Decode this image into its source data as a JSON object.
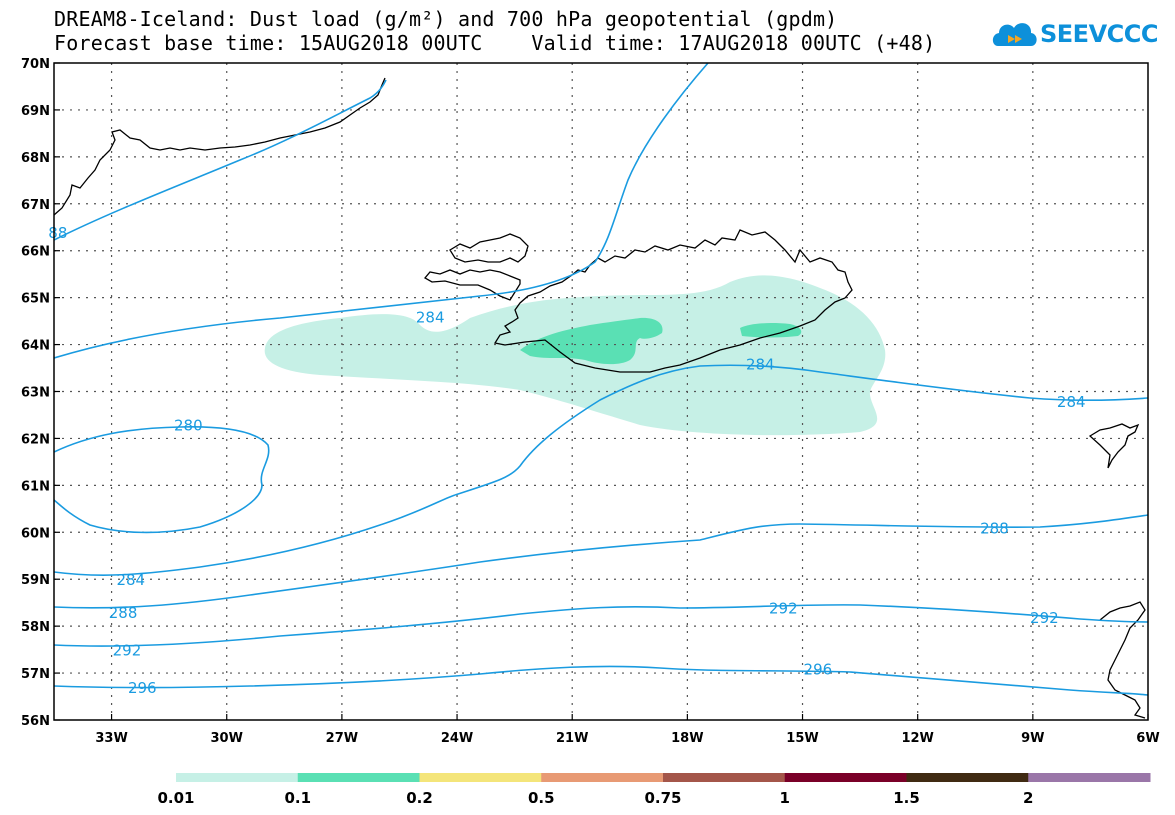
{
  "header": {
    "title_line1": "DREAM8-Iceland: Dust load (g/m²) and 700 hPa geopotential (gpdm)",
    "title_line2": "Forecast base time: 15AUG2018 00UTC    Valid time: 17AUG2018 00UTC (+48)"
  },
  "logo": {
    "text": "SEEVCCC"
  },
  "map": {
    "lon_range": [
      -34.5,
      -6
    ],
    "lat_range": [
      56,
      70
    ],
    "lon_ticks": [
      "33W",
      "30W",
      "27W",
      "24W",
      "21W",
      "18W",
      "15W",
      "12W",
      "9W",
      "6W"
    ],
    "lat_ticks": [
      "56N",
      "57N",
      "58N",
      "59N",
      "60N",
      "61N",
      "62N",
      "63N",
      "64N",
      "65N",
      "66N",
      "67N",
      "68N",
      "69N",
      "70N"
    ],
    "gridlines": "dotted",
    "contour_color": "#1a9be0",
    "coast_color": "#000000",
    "contour_labels": [
      {
        "text": "88",
        "lon": -34.4,
        "lat": 66.4
      },
      {
        "text": "284",
        "lon": -24.7,
        "lat": 64.6
      },
      {
        "text": "284",
        "lon": -16.1,
        "lat": 63.6
      },
      {
        "text": "284",
        "lon": -8.0,
        "lat": 62.8
      },
      {
        "text": "280",
        "lon": -31.0,
        "lat": 62.3
      },
      {
        "text": "288",
        "lon": -10.0,
        "lat": 60.1
      },
      {
        "text": "284",
        "lon": -32.5,
        "lat": 59.0
      },
      {
        "text": "288",
        "lon": -32.7,
        "lat": 58.3
      },
      {
        "text": "292",
        "lon": -15.5,
        "lat": 58.4
      },
      {
        "text": "292",
        "lon": -8.7,
        "lat": 58.2
      },
      {
        "text": "292",
        "lon": -32.6,
        "lat": 57.5
      },
      {
        "text": "296",
        "lon": -14.6,
        "lat": 57.1
      },
      {
        "text": "296",
        "lon": -32.2,
        "lat": 56.7
      }
    ]
  },
  "legend": {
    "labels": [
      "0.01",
      "0.1",
      "0.2",
      "0.5",
      "0.75",
      "1",
      "1.5",
      "2"
    ],
    "colors": [
      "#c6f0e6",
      "#5ae0b4",
      "#f4e57a",
      "#e89a74",
      "#a4564a",
      "#7a0028",
      "#402a12",
      "#9a76a8"
    ]
  }
}
